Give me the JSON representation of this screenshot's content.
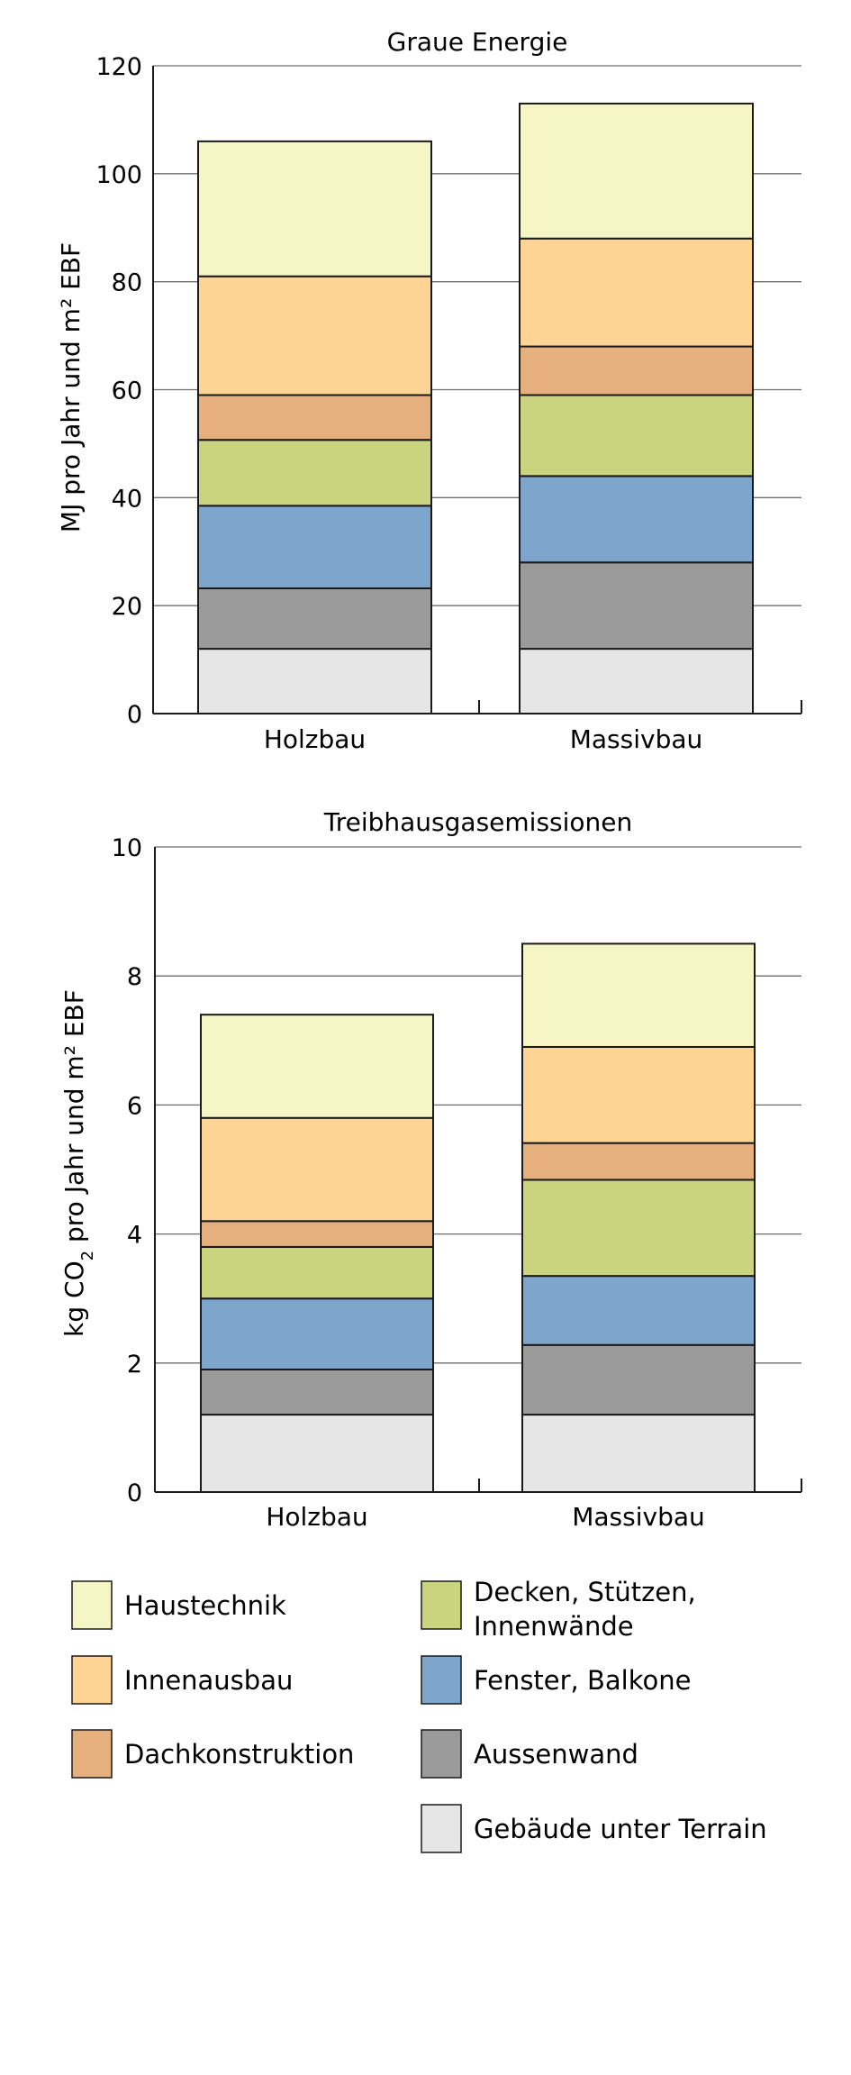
{
  "colors": {
    "Haustechnik": "#f5f5c5",
    "Innenausbau": "#fdd494",
    "Dachkonstruktion": "#e6b07e",
    "Decken": "#cad37d",
    "Fenster": "#7ea6cd",
    "Aussenwand": "#9b9b9c",
    "Gebaeude": "#e6e6e6"
  },
  "chart_data": [
    {
      "type": "bar",
      "stacked": true,
      "title": "Graue Energie",
      "ylabel": "MJ pro Jahr und m² EBF",
      "categories": [
        "Holzbau",
        "Massivbau"
      ],
      "ylim": [
        0,
        120
      ],
      "yticks": [
        "0",
        "20",
        "40",
        "60",
        "80",
        "100",
        "120"
      ],
      "grid": true,
      "series": [
        {
          "name": "Gebäude unter Terrain",
          "key": "Gebaeude",
          "values": [
            12,
            12
          ]
        },
        {
          "name": "Aussenwand",
          "key": "Aussenwand",
          "values": [
            11.2,
            16
          ]
        },
        {
          "name": "Fenster, Balkone",
          "key": "Fenster",
          "values": [
            15.3,
            16
          ]
        },
        {
          "name": "Decken, Stützen, Innenwände",
          "key": "Decken",
          "values": [
            12.2,
            15
          ]
        },
        {
          "name": "Dachkonstruktion",
          "key": "Dachkonstruktion",
          "values": [
            8.3,
            9
          ]
        },
        {
          "name": "Innenausbau",
          "key": "Innenausbau",
          "values": [
            22,
            20
          ]
        },
        {
          "name": "Haustechnik",
          "key": "Haustechnik",
          "values": [
            25,
            25
          ]
        }
      ]
    },
    {
      "type": "bar",
      "stacked": true,
      "title": "Treibhausgasemissionen",
      "ylabel_parts": [
        "kg CO",
        "2",
        " pro Jahr und m² EBF"
      ],
      "categories": [
        "Holzbau",
        "Massivbau"
      ],
      "ylim": [
        0,
        10
      ],
      "yticks": [
        "0",
        "2",
        "4",
        "6",
        "8",
        "10"
      ],
      "grid": true,
      "series": [
        {
          "name": "Gebäude unter Terrain",
          "key": "Gebaeude",
          "values": [
            1.2,
            1.2
          ]
        },
        {
          "name": "Aussenwand",
          "key": "Aussenwand",
          "values": [
            0.7,
            1.08
          ]
        },
        {
          "name": "Fenster, Balkone",
          "key": "Fenster",
          "values": [
            1.1,
            1.07
          ]
        },
        {
          "name": "Decken, Stützen, Innenwände",
          "key": "Decken",
          "values": [
            0.8,
            1.49
          ]
        },
        {
          "name": "Dachkonstruktion",
          "key": "Dachkonstruktion",
          "values": [
            0.4,
            0.57
          ]
        },
        {
          "name": "Innenausbau",
          "key": "Innenausbau",
          "values": [
            1.6,
            1.49
          ]
        },
        {
          "name": "Haustechnik",
          "key": "Haustechnik",
          "values": [
            1.6,
            1.6
          ]
        }
      ]
    }
  ],
  "legend": [
    {
      "key": "Haustechnik",
      "lines": [
        "Haustechnik"
      ]
    },
    {
      "key": "Innenausbau",
      "lines": [
        "Innenausbau"
      ]
    },
    {
      "key": "Dachkonstruktion",
      "lines": [
        "Dachkonstruktion"
      ]
    },
    {
      "key": "Decken",
      "lines": [
        "Decken, Stützen,",
        "Innenwände"
      ]
    },
    {
      "key": "Fenster",
      "lines": [
        "Fenster, Balkone"
      ]
    },
    {
      "key": "Aussenwand",
      "lines": [
        "Aussenwand"
      ]
    },
    {
      "key": "Gebaeude",
      "lines": [
        "Gebäude unter Terrain"
      ]
    }
  ]
}
